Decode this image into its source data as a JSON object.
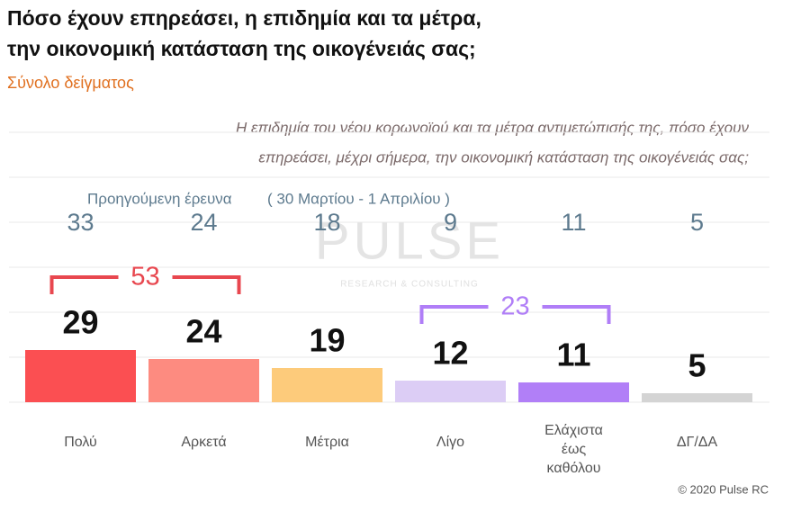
{
  "chart_data": {
    "type": "bar",
    "title": [
      "Πόσο έχουν επηρεάσει, η επιδημία και τα μέτρα,",
      "την οικονομική κατάσταση της οικογένειάς σας;"
    ],
    "subtitle": "Σύνολο δείγματος",
    "question": [
      "Η επιδημία του νέου κορωνοϊού και τα μέτρα αντιμετώπισής της, πόσο έχουν",
      "επηρεάσει, μέχρι σήμερα, την οικονομική κατάσταση της οικογένειάς σας;"
    ],
    "categories": [
      "Πολύ",
      "Αρκετά",
      "Μέτρια",
      "Λίγο",
      "Ελάχιστα έως καθόλου",
      "ΔΓ/ΔΑ"
    ],
    "values": [
      29,
      24,
      19,
      12,
      11,
      5
    ],
    "colors": [
      "#fb4f52",
      "#fd8b80",
      "#fdcb7b",
      "#dccdf5",
      "#b17ff7",
      "#d4d4d4"
    ],
    "previous": {
      "name": "Προηγούμενη έρευνα",
      "period": "( 30 Μαρτίου - 1 Απριλίου )",
      "color": "#5d7a8e",
      "values": [
        33,
        24,
        18,
        9,
        11,
        5
      ]
    },
    "groups": [
      {
        "categories": [
          "Πολύ",
          "Αρκετά"
        ],
        "value": 53,
        "color": "#e8474f"
      },
      {
        "categories": [
          "Λίγο",
          "Ελάχιστα έως καθόλου"
        ],
        "value": 23,
        "color": "#b07ef7"
      }
    ],
    "ylim": [
      0,
      150
    ],
    "yticks": [
      0,
      25,
      50,
      75,
      100,
      125,
      150
    ],
    "grid": true,
    "watermark": {
      "name": "PULSE",
      "tagline": "RESEARCH & CONSULTING"
    },
    "copyright": "© 2020 Pulse RC"
  }
}
